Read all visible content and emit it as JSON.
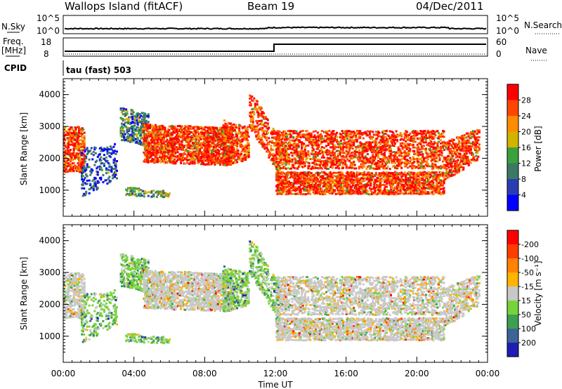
{
  "header": {
    "station": "Wallops Island (fitACF)",
    "beam": "Beam 19",
    "date": "04/Dec/2011"
  },
  "top_panels": {
    "nsky_label": "N.Sky",
    "nsearch_label": "N.Search",
    "nsky_ticks": [
      "10^5",
      "10^0"
    ],
    "nsearch_ticks": [
      "10^5",
      "10^0"
    ],
    "freq_label_1": "Freq.",
    "freq_label_2": "[MHz]",
    "freq_ticks": [
      "18",
      "8"
    ],
    "nave_label": "Nave",
    "nave_ticks": [
      "60",
      "0"
    ],
    "cpid_label": "CPID",
    "cpid_text": "tau (fast) 503"
  },
  "chart_data": [
    {
      "type": "heatmap",
      "title": "",
      "xlabel": "",
      "ylabel": "Slant Range [km]",
      "xlim_hours": [
        0,
        24
      ],
      "ylim_km": [
        180,
        4500
      ],
      "y_ticks": [
        1000,
        2000,
        3000,
        4000
      ],
      "colorbar_label": "Power [dB]",
      "colorbar_ticks": [
        "4",
        "8",
        "12",
        "16",
        "20",
        "24",
        "28"
      ],
      "colorbar_range": [
        0,
        32
      ],
      "colors": [
        "#0000ff",
        "#2a3cb4",
        "#3c7864",
        "#3ca03c",
        "#d2b400",
        "#ff8c00",
        "#ff4600",
        "#ff0000"
      ]
    },
    {
      "type": "heatmap",
      "title": "",
      "xlabel": "Time UT",
      "ylabel": "Slant Range [km]",
      "xlim_hours": [
        0,
        24
      ],
      "ylim_km": [
        180,
        4500
      ],
      "y_ticks": [
        1000,
        2000,
        3000,
        4000
      ],
      "x_ticks": [
        "00:00",
        "04:00",
        "08:00",
        "12:00",
        "16:00",
        "20:00",
        "00:00"
      ],
      "colorbar_label": "Velocity [m s⁻¹]",
      "colorbar_ticks": [
        "200",
        "100",
        "50",
        "15",
        "-15",
        "-50",
        "-100",
        "-200"
      ],
      "colors": [
        "#1e1eb4",
        "#3c6496",
        "#3ca050",
        "#78d23c",
        "#c8c8c8",
        "#ffb400",
        "#ff8200",
        "#ff3c00",
        "#ff0000"
      ]
    }
  ]
}
